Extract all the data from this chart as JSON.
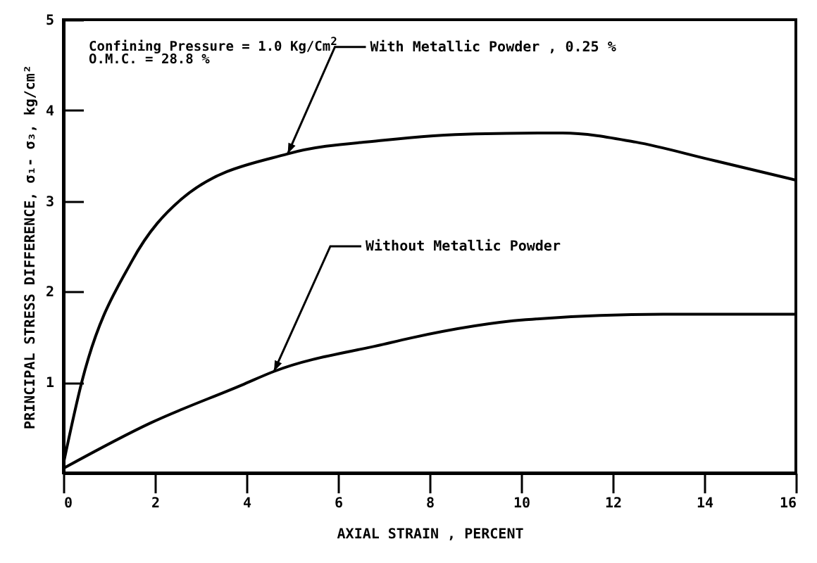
{
  "chart_data": {
    "type": "line",
    "xlabel": "AXIAL  STRAIN , PERCENT",
    "ylabel": "PRINCIPAL STRESS DIFFERENCE, σ₁- σ₃, kg/cm²",
    "annotations": [
      "Confining Pressure = 1.0 Kg/Cm$^{2}$",
      "O.M.C. = 28.8 %"
    ],
    "xlim": [
      0,
      16
    ],
    "xticks": [
      0,
      2,
      4,
      6,
      8,
      10,
      12,
      14,
      16
    ],
    "ylim": [
      0,
      5
    ],
    "yticks": [
      1,
      2,
      3,
      4,
      5
    ],
    "marker": "none",
    "line_style": "solid",
    "series": [
      {
        "name": "With Metallic Powder , 0.25 %",
        "color": "#000000",
        "x": [
          0,
          0.4,
          1.5,
          2.6,
          4.9,
          7.0,
          9.0,
          10.9,
          12.5,
          14.1,
          16
        ],
        "values": [
          0.1,
          1.0,
          2.34,
          3.03,
          3.52,
          3.67,
          3.74,
          3.75,
          3.65,
          3.46,
          3.23
        ]
      },
      {
        "name": "Without Metallic Powder",
        "color": "#000000",
        "x": [
          0,
          1.9,
          3.9,
          4.6,
          7.0,
          7.6,
          10.1,
          13.1,
          16
        ],
        "values": [
          0.05,
          0.55,
          0.97,
          1.12,
          1.42,
          1.49,
          1.69,
          1.75,
          1.75
        ]
      }
    ]
  }
}
